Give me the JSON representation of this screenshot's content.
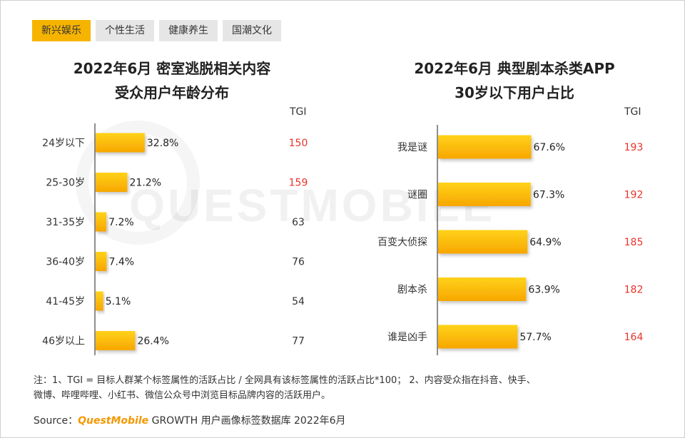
{
  "tabs": [
    {
      "label": "新兴娱乐",
      "active": true
    },
    {
      "label": "个性生活",
      "active": false
    },
    {
      "label": "健康养生",
      "active": false
    },
    {
      "label": "国潮文化",
      "active": false
    }
  ],
  "watermark": "QUESTMOBILE",
  "colors": {
    "bar_top": "#ffd21a",
    "bar_bottom": "#f7a600",
    "tgi_high": "#e8342c",
    "tgi_normal": "#333333",
    "tab_active": "#f6b400"
  },
  "chart_data": [
    {
      "type": "bar",
      "orientation": "horizontal",
      "title_line1": "2022年6月 密室逃脱相关内容",
      "title_line2": "受众用户年龄分布",
      "tgi_header": "TGI",
      "categories": [
        "24岁以下",
        "25-30岁",
        "31-35岁",
        "36-40岁",
        "41-45岁",
        "46岁以上"
      ],
      "values": [
        32.8,
        21.2,
        7.2,
        7.4,
        5.1,
        26.4
      ],
      "value_labels": [
        "32.8%",
        "21.2%",
        "7.2%",
        "7.4%",
        "5.1%",
        "26.4%"
      ],
      "tgi": [
        150,
        159,
        63,
        76,
        54,
        77
      ],
      "xlim": [
        0,
        100
      ]
    },
    {
      "type": "bar",
      "orientation": "horizontal",
      "title_line1": "2022年6月 典型剧本杀类APP",
      "title_line2": "30岁以下用户占比",
      "tgi_header": "TGI",
      "categories": [
        "我是谜",
        "谜圈",
        "百变大侦探",
        "剧本杀",
        "谁是凶手"
      ],
      "values": [
        67.6,
        67.3,
        64.9,
        63.9,
        57.7
      ],
      "value_labels": [
        "67.6%",
        "67.3%",
        "64.9%",
        "63.9%",
        "57.7%"
      ],
      "tgi": [
        193,
        192,
        185,
        182,
        164
      ],
      "xlim": [
        0,
        100
      ]
    }
  ],
  "note": {
    "line1": "注：1、TGI = 目标人群某个标签属性的活跃占比 / 全网具有该标签属性的活跃占比*100； 2、内容受众指在抖音、快手、",
    "line2": "微博、哔哩哔哩、小红书、微信公众号中浏览目标品牌内容的活跃用户。"
  },
  "source": {
    "prefix": "Source：",
    "brand": "QuestMobile",
    "suffix": " GROWTH 用户画像标签数据库 2022年6月"
  }
}
